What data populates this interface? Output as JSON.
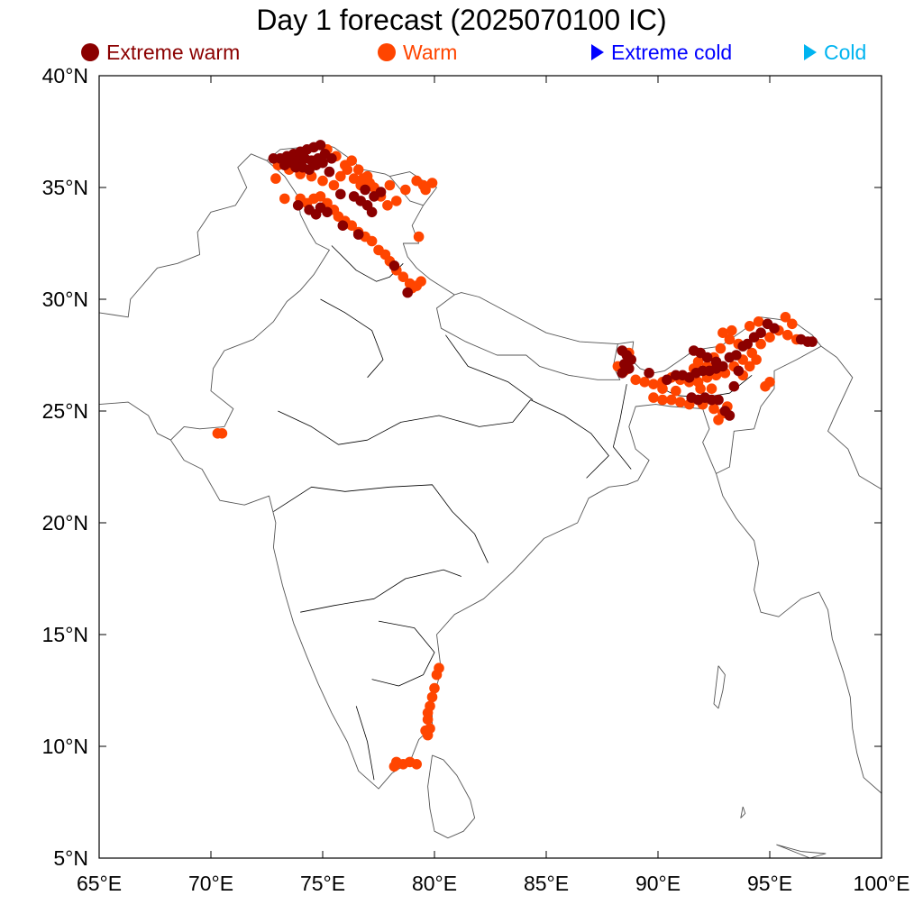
{
  "title": "Day 1 forecast (2025070100 IC)",
  "legend": [
    {
      "label": "Extreme warm",
      "symbol": "circle",
      "color": "#8b0000"
    },
    {
      "label": "Warm",
      "symbol": "circle",
      "color": "#ff4500"
    },
    {
      "label": "Extreme cold",
      "symbol": "triangle",
      "color": "#0000ff"
    },
    {
      "label": "Cold",
      "symbol": "triangle",
      "color": "#00b4f0"
    }
  ],
  "axes": {
    "lon_range": [
      65,
      100
    ],
    "lat_range": [
      5,
      40
    ],
    "x_ticks": [
      "65°E",
      "70°E",
      "75°E",
      "80°E",
      "85°E",
      "90°E",
      "95°E",
      "100°E"
    ],
    "y_ticks": [
      "40°N",
      "35°N",
      "30°N",
      "25°N",
      "20°N",
      "15°N",
      "10°N",
      "5°N"
    ]
  },
  "chart_data": {
    "type": "scatter",
    "xlim": [
      65,
      100
    ],
    "ylim": [
      5,
      40
    ],
    "series": [
      {
        "name": "Extreme warm",
        "color": "#8b0000",
        "points": [
          [
            72.8,
            36.3
          ],
          [
            73.1,
            36.3
          ],
          [
            73.4,
            36.4
          ],
          [
            73.7,
            36.5
          ],
          [
            74.0,
            36.6
          ],
          [
            74.3,
            36.7
          ],
          [
            74.6,
            36.8
          ],
          [
            74.9,
            36.9
          ],
          [
            73.3,
            36.0
          ],
          [
            73.6,
            36.1
          ],
          [
            73.9,
            36.2
          ],
          [
            74.2,
            36.3
          ],
          [
            74.5,
            36.2
          ],
          [
            74.8,
            36.3
          ],
          [
            75.1,
            36.5
          ],
          [
            75.4,
            36.3
          ],
          [
            73.8,
            35.9
          ],
          [
            74.1,
            35.9
          ],
          [
            74.4,
            35.8
          ],
          [
            74.7,
            36.0
          ],
          [
            75.0,
            36.1
          ],
          [
            75.3,
            35.7
          ],
          [
            74.4,
            34.0
          ],
          [
            74.7,
            33.8
          ],
          [
            74.9,
            34.1
          ],
          [
            75.2,
            33.9
          ],
          [
            73.9,
            34.2
          ],
          [
            76.4,
            34.6
          ],
          [
            76.7,
            34.4
          ],
          [
            77.0,
            34.2
          ],
          [
            77.3,
            34.6
          ],
          [
            77.6,
            34.8
          ],
          [
            77.2,
            33.9
          ],
          [
            76.9,
            34.9
          ],
          [
            75.8,
            34.7
          ],
          [
            75.9,
            33.3
          ],
          [
            76.6,
            32.9
          ],
          [
            78.2,
            31.5
          ],
          [
            78.8,
            30.3
          ],
          [
            88.4,
            27.7
          ],
          [
            88.6,
            27.5
          ],
          [
            88.8,
            27.3
          ],
          [
            88.5,
            27.1
          ],
          [
            88.7,
            26.9
          ],
          [
            88.4,
            26.7
          ],
          [
            90.8,
            26.6
          ],
          [
            91.1,
            26.6
          ],
          [
            91.4,
            26.5
          ],
          [
            91.7,
            26.7
          ],
          [
            92.0,
            26.8
          ],
          [
            92.3,
            26.8
          ],
          [
            92.6,
            26.9
          ],
          [
            91.5,
            25.6
          ],
          [
            91.8,
            25.5
          ],
          [
            92.1,
            25.6
          ],
          [
            92.4,
            25.5
          ],
          [
            92.7,
            25.5
          ],
          [
            93.0,
            25.0
          ],
          [
            93.2,
            24.8
          ],
          [
            91.6,
            27.7
          ],
          [
            91.9,
            27.6
          ],
          [
            92.2,
            27.4
          ],
          [
            92.6,
            27.2
          ],
          [
            92.9,
            27.0
          ],
          [
            93.2,
            27.4
          ],
          [
            93.5,
            27.5
          ],
          [
            93.8,
            27.9
          ],
          [
            94.0,
            28.0
          ],
          [
            94.3,
            28.3
          ],
          [
            94.6,
            28.5
          ],
          [
            94.9,
            28.9
          ],
          [
            95.2,
            28.7
          ],
          [
            93.6,
            26.8
          ],
          [
            93.4,
            26.1
          ],
          [
            96.4,
            28.2
          ],
          [
            96.7,
            28.1
          ],
          [
            96.9,
            28.1
          ],
          [
            89.6,
            26.7
          ],
          [
            90.4,
            26.4
          ]
        ]
      },
      {
        "name": "Warm",
        "color": "#ff4500",
        "points": [
          [
            73.0,
            36.0
          ],
          [
            73.5,
            35.8
          ],
          [
            74.0,
            35.6
          ],
          [
            74.5,
            35.5
          ],
          [
            75.0,
            35.3
          ],
          [
            75.5,
            35.1
          ],
          [
            75.8,
            35.5
          ],
          [
            76.1,
            35.8
          ],
          [
            76.4,
            35.4
          ],
          [
            76.7,
            35.1
          ],
          [
            77.0,
            35.5
          ],
          [
            77.3,
            35.0
          ],
          [
            77.6,
            34.6
          ],
          [
            77.9,
            34.2
          ],
          [
            78.0,
            35.1
          ],
          [
            78.3,
            34.4
          ],
          [
            75.2,
            36.7
          ],
          [
            75.6,
            36.4
          ],
          [
            76.0,
            36.0
          ],
          [
            76.3,
            36.2
          ],
          [
            76.6,
            35.8
          ],
          [
            76.8,
            35.4
          ],
          [
            77.1,
            35.2
          ],
          [
            74.0,
            34.5
          ],
          [
            74.3,
            34.3
          ],
          [
            74.6,
            34.5
          ],
          [
            74.9,
            34.6
          ],
          [
            75.2,
            34.3
          ],
          [
            75.5,
            34.0
          ],
          [
            75.7,
            33.7
          ],
          [
            76.0,
            33.5
          ],
          [
            76.3,
            33.3
          ],
          [
            76.6,
            33.0
          ],
          [
            76.9,
            32.8
          ],
          [
            77.2,
            32.6
          ],
          [
            77.5,
            32.2
          ],
          [
            77.8,
            32.0
          ],
          [
            78.0,
            31.7
          ],
          [
            78.3,
            31.3
          ],
          [
            78.6,
            31.0
          ],
          [
            78.9,
            30.7
          ],
          [
            79.2,
            30.6
          ],
          [
            79.4,
            30.8
          ],
          [
            79.0,
            30.5
          ],
          [
            73.3,
            34.5
          ],
          [
            72.9,
            35.4
          ],
          [
            78.7,
            34.9
          ],
          [
            79.3,
            32.8
          ],
          [
            79.5,
            35.1
          ],
          [
            79.2,
            35.3
          ],
          [
            79.9,
            35.2
          ],
          [
            79.6,
            34.9
          ],
          [
            70.3,
            24.0
          ],
          [
            70.5,
            24.0
          ],
          [
            80.2,
            13.5
          ],
          [
            80.1,
            13.2
          ],
          [
            80.0,
            12.6
          ],
          [
            79.9,
            12.2
          ],
          [
            79.8,
            11.8
          ],
          [
            79.7,
            11.5
          ],
          [
            79.7,
            11.2
          ],
          [
            79.8,
            10.8
          ],
          [
            79.7,
            10.5
          ],
          [
            79.6,
            10.7
          ],
          [
            78.3,
            9.3
          ],
          [
            78.6,
            9.2
          ],
          [
            78.9,
            9.3
          ],
          [
            79.2,
            9.2
          ],
          [
            78.2,
            9.1
          ],
          [
            88.5,
            26.8
          ],
          [
            89.0,
            26.4
          ],
          [
            89.4,
            26.3
          ],
          [
            89.8,
            26.2
          ],
          [
            90.2,
            26.3
          ],
          [
            90.6,
            26.5
          ],
          [
            91.0,
            26.4
          ],
          [
            91.4,
            26.3
          ],
          [
            91.8,
            26.3
          ],
          [
            92.2,
            26.5
          ],
          [
            92.6,
            26.6
          ],
          [
            93.0,
            26.7
          ],
          [
            93.4,
            27.0
          ],
          [
            93.8,
            27.3
          ],
          [
            94.2,
            27.6
          ],
          [
            94.6,
            28.0
          ],
          [
            95.0,
            28.3
          ],
          [
            95.4,
            28.6
          ],
          [
            95.8,
            28.4
          ],
          [
            96.2,
            28.2
          ],
          [
            95.7,
            29.2
          ],
          [
            96.0,
            28.9
          ],
          [
            94.8,
            26.1
          ],
          [
            95.0,
            26.3
          ],
          [
            89.8,
            25.6
          ],
          [
            90.2,
            25.5
          ],
          [
            90.6,
            25.5
          ],
          [
            91.0,
            25.4
          ],
          [
            91.4,
            25.3
          ],
          [
            92.0,
            25.3
          ],
          [
            92.5,
            25.1
          ],
          [
            92.7,
            24.6
          ],
          [
            92.9,
            24.9
          ],
          [
            93.1,
            25.2
          ],
          [
            92.4,
            26.0
          ],
          [
            91.9,
            26.0
          ],
          [
            90.8,
            25.9
          ],
          [
            90.2,
            26.0
          ],
          [
            93.8,
            26.6
          ],
          [
            94.1,
            27.0
          ],
          [
            94.4,
            27.3
          ],
          [
            93.6,
            28.0
          ],
          [
            93.2,
            28.2
          ],
          [
            92.8,
            27.8
          ],
          [
            92.5,
            27.4
          ],
          [
            92.2,
            27.0
          ],
          [
            91.8,
            27.2
          ],
          [
            91.6,
            26.9
          ],
          [
            92.9,
            28.5
          ],
          [
            93.3,
            28.6
          ],
          [
            94.1,
            28.8
          ],
          [
            94.5,
            29.0
          ],
          [
            88.2,
            27.0
          ],
          [
            88.7,
            27.6
          ]
        ]
      }
    ],
    "categories": [],
    "xlabel": "",
    "ylabel": ""
  }
}
